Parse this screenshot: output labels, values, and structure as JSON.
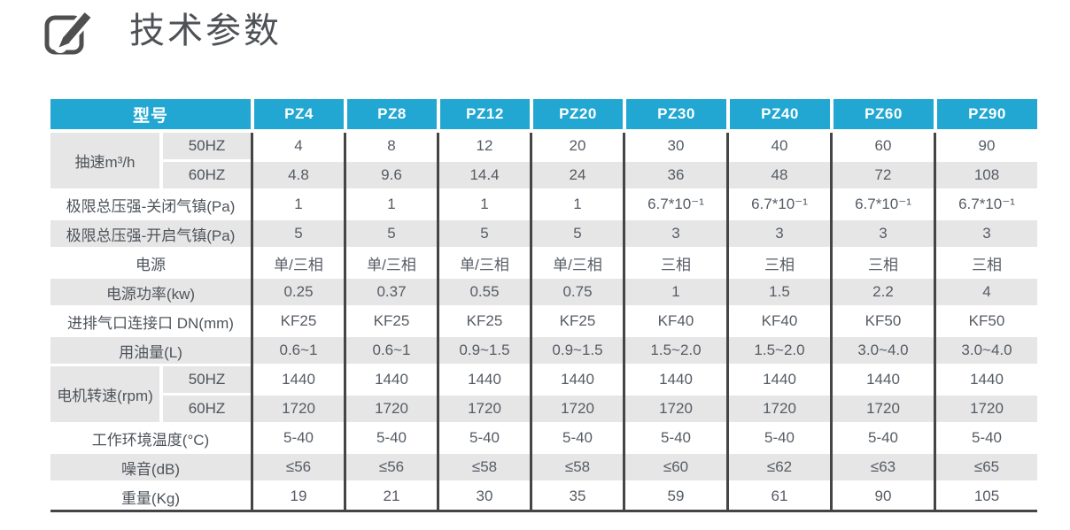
{
  "page": {
    "title": "技术参数",
    "title_icon": "edit-icon"
  },
  "colors": {
    "accent_header": "#21A7D2",
    "alt_row": "#E6E6E6",
    "grid_line": "#454545",
    "title_text": "#4E5256",
    "cell_text": "#565C64",
    "header_text": "#FFFFFF"
  },
  "table": {
    "corner_label": "型号",
    "models": [
      "PZ4",
      "PZ8",
      "PZ12",
      "PZ20",
      "PZ30",
      "PZ40",
      "PZ60",
      "PZ90"
    ],
    "row_groups": [
      {
        "label": "抽速m³/h",
        "subrows": [
          {
            "sub": "50HZ",
            "values": [
              "4",
              "8",
              "12",
              "20",
              "30",
              "40",
              "60",
              "90"
            ]
          },
          {
            "sub": "60HZ",
            "values": [
              "4.8",
              "9.6",
              "14.4",
              "24",
              "36",
              "48",
              "72",
              "108"
            ]
          }
        ]
      },
      {
        "label": "极限总压强-关闭气镇(Pa)",
        "values": [
          "1",
          "1",
          "1",
          "1",
          "6.7*10⁻¹",
          "6.7*10⁻¹",
          "6.7*10⁻¹",
          "6.7*10⁻¹"
        ]
      },
      {
        "label": "极限总压强-开启气镇(Pa)",
        "values": [
          "5",
          "5",
          "5",
          "5",
          "3",
          "3",
          "3",
          "3"
        ]
      },
      {
        "label": "电源",
        "values": [
          "单/三相",
          "单/三相",
          "单/三相",
          "单/三相",
          "三相",
          "三相",
          "三相",
          "三相"
        ]
      },
      {
        "label": "电源功率(kw)",
        "values": [
          "0.25",
          "0.37",
          "0.55",
          "0.75",
          "1",
          "1.5",
          "2.2",
          "4"
        ]
      },
      {
        "label": "进排气口连接口 DN(mm)",
        "values": [
          "KF25",
          "KF25",
          "KF25",
          "KF25",
          "KF40",
          "KF40",
          "KF50",
          "KF50"
        ]
      },
      {
        "label": "用油量(L)",
        "values": [
          "0.6~1",
          "0.6~1",
          "0.9~1.5",
          "0.9~1.5",
          "1.5~2.0",
          "1.5~2.0",
          "3.0~4.0",
          "3.0~4.0"
        ]
      },
      {
        "label": "电机转速(rpm)",
        "subrows": [
          {
            "sub": "50HZ",
            "values": [
              "1440",
              "1440",
              "1440",
              "1440",
              "1440",
              "1440",
              "1440",
              "1440"
            ]
          },
          {
            "sub": "60HZ",
            "values": [
              "1720",
              "1720",
              "1720",
              "1720",
              "1720",
              "1720",
              "1720",
              "1720"
            ]
          }
        ]
      },
      {
        "label": "工作环境温度(°C)",
        "values": [
          "5-40",
          "5-40",
          "5-40",
          "5-40",
          "5-40",
          "5-40",
          "5-40",
          "5-40"
        ]
      },
      {
        "label": "噪音(dB)",
        "values": [
          "≤56",
          "≤56",
          "≤58",
          "≤58",
          "≤60",
          "≤62",
          "≤63",
          "≤65"
        ]
      },
      {
        "label": "重量(Kg)",
        "values": [
          "19",
          "21",
          "30",
          "35",
          "59",
          "61",
          "90",
          "105"
        ]
      }
    ]
  }
}
